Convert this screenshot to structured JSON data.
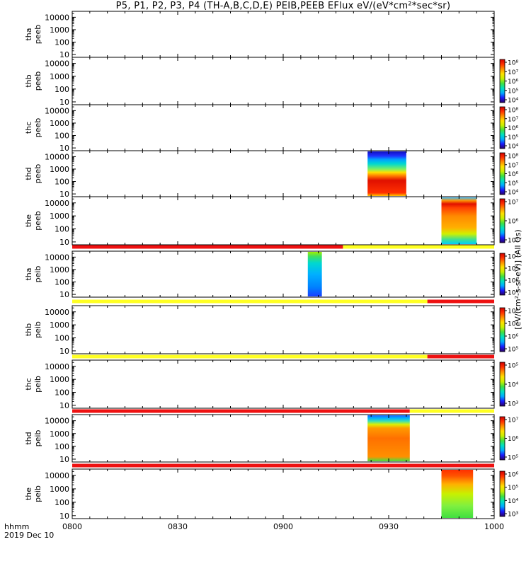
{
  "title": "P5, P1, P2, P3, P4 (TH-A,B,C,D,E) PEIB,PEEB EFlux eV/(eV*cm²*sec*sr)",
  "corner": {
    "line1": "hhmm",
    "line2": "2019 Dec 10"
  },
  "colorbar_unit": "[eV/(cm²-s-sr-eV)] (All Qs)",
  "colors": {
    "flag_red": "#ee1111",
    "flag_yellow": "#ffff22",
    "colormap": [
      "#2a0060",
      "#1a1aff",
      "#00aaff",
      "#00e0c0",
      "#40e040",
      "#c8f000",
      "#ffe000",
      "#ff9000",
      "#ff3000",
      "#d00000"
    ]
  },
  "chart_data": {
    "type": "heatmap",
    "x_axis": {
      "range": [
        "0800",
        "1000"
      ],
      "ticks": [
        "0800",
        "0830",
        "0900",
        "0930",
        "1000"
      ]
    },
    "y_axis": {
      "scale": "log",
      "ticks": [
        "10",
        "100",
        "1000",
        "10000"
      ]
    },
    "panels": [
      {
        "label": [
          "tha",
          "peeb"
        ],
        "has_colorbar": false,
        "cbar_ticks": [],
        "blocks": [],
        "flags": []
      },
      {
        "label": [
          "thb",
          "peeb"
        ],
        "has_colorbar": true,
        "cbar_ticks": [
          "10⁴",
          "10⁵",
          "10⁶",
          "10⁷",
          "10⁸"
        ],
        "blocks": [],
        "flags": []
      },
      {
        "label": [
          "thc",
          "peeb"
        ],
        "has_colorbar": true,
        "cbar_ticks": [
          "10⁴",
          "10⁵",
          "10⁶",
          "10⁷",
          "10⁸"
        ],
        "blocks": [],
        "flags": []
      },
      {
        "label": [
          "thd",
          "peeb"
        ],
        "has_colorbar": true,
        "cbar_ticks": [
          "10⁴",
          "10⁵",
          "10⁶",
          "10⁷",
          "10⁸"
        ],
        "blocks": [
          {
            "start": "0924",
            "end": "0935",
            "profile": "thd_peeb"
          }
        ],
        "flags": []
      },
      {
        "label": [
          "the",
          "peeb"
        ],
        "has_colorbar": true,
        "cbar_ticks": [
          "10⁵",
          "10⁶",
          "10⁷"
        ],
        "blocks": [
          {
            "start": "0945",
            "end": "0955",
            "profile": "the_peeb"
          }
        ],
        "flags": [
          {
            "start": "0800",
            "end": "0917",
            "color": "red"
          },
          {
            "start": "0917",
            "end": "1000",
            "color": "yellow"
          }
        ]
      },
      {
        "label": [
          "tha",
          "peib"
        ],
        "has_colorbar": true,
        "cbar_ticks": [
          "10⁴",
          "10⁵",
          "10⁶",
          "10⁷"
        ],
        "blocks": [
          {
            "start": "0907",
            "end": "0911",
            "profile": "tha_peib"
          }
        ],
        "flags": [
          {
            "start": "0800",
            "end": "0941",
            "color": "yellow"
          },
          {
            "start": "0941",
            "end": "1000",
            "color": "red"
          }
        ]
      },
      {
        "label": [
          "thb",
          "peib"
        ],
        "has_colorbar": true,
        "cbar_ticks": [
          "10⁵",
          "10⁶",
          "10⁷",
          "10⁸"
        ],
        "blocks": [],
        "flags": [
          {
            "start": "0800",
            "end": "0941",
            "color": "yellow"
          },
          {
            "start": "0941",
            "end": "1000",
            "color": "red"
          }
        ]
      },
      {
        "label": [
          "thc",
          "peib"
        ],
        "has_colorbar": true,
        "cbar_ticks": [
          "10³",
          "10⁴",
          "10⁵"
        ],
        "blocks": [],
        "flags": [
          {
            "start": "0800",
            "end": "0936",
            "color": "red"
          },
          {
            "start": "0936",
            "end": "1000",
            "color": "yellow"
          }
        ]
      },
      {
        "label": [
          "thd",
          "peib"
        ],
        "has_colorbar": true,
        "cbar_ticks": [
          "10⁵",
          "10⁶",
          "10⁷"
        ],
        "blocks": [
          {
            "start": "0924",
            "end": "0936",
            "profile": "thd_peib"
          }
        ],
        "flags": [
          {
            "start": "0800",
            "end": "1000",
            "color": "red"
          }
        ]
      },
      {
        "label": [
          "the",
          "peib"
        ],
        "has_colorbar": true,
        "cbar_ticks": [
          "10³",
          "10⁴",
          "10⁵",
          "10⁶"
        ],
        "blocks": [
          {
            "start": "0945",
            "end": "0954",
            "profile": "the_peib"
          }
        ],
        "flags": []
      }
    ]
  }
}
